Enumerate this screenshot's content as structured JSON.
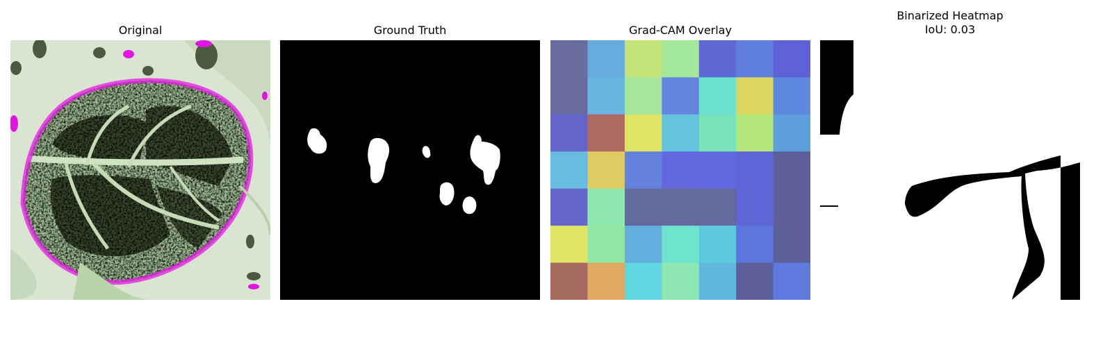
{
  "panels": [
    {
      "title": "Original"
    },
    {
      "title": "Ground Truth"
    },
    {
      "title": "Grad-CAM Overlay"
    },
    {
      "title": "Binarized Heatmap",
      "subtitle": "IoU: 0.03"
    }
  ],
  "image_description": {
    "original": "pale green leaf with dark lesion patches, magenta and blue artifact speckles",
    "ground_truth": "black mask with seven small white blobs",
    "gradcam": "7x7 grid of translucent heatmap colors over the leaf",
    "binarized": "white background with black shapes: top-left strip, diagonal band and lower-right arch"
  },
  "colors": {
    "mask_background": "#000000",
    "mask_foreground": "#ffffff"
  },
  "gradcam_grid": [
    [
      "#686c9e",
      "#67acde",
      "#c4e47a",
      "#a3e89a",
      "#5f69d6",
      "#5f7fdc",
      "#5f62d6"
    ],
    [
      "#686c9e",
      "#69b4e0",
      "#a6e59c",
      "#6484de",
      "#69e2cf",
      "#ddd65e",
      "#5f89de"
    ],
    [
      "#6466cc",
      "#ac6b5e",
      "#dfe464",
      "#62c4de",
      "#7ae2b8",
      "#b4e67e",
      "#5c9ede"
    ],
    [
      "#68bce0",
      "#e0ca62",
      "#6482dc",
      "#6468de",
      "#6368e0",
      "#5f66d6",
      "#5c5f9a"
    ],
    [
      "#6466cc",
      "#8ee8b0",
      "#646a9e",
      "#646a9e",
      "#646a9e",
      "#5f66d6",
      "#5c5f9a"
    ],
    [
      "#dfe462",
      "#94e6a6",
      "#64aede",
      "#6ee4cf",
      "#5ec8e0",
      "#5c76dc",
      "#5c5f9a"
    ],
    [
      "#a46b5e",
      "#e0a862",
      "#5fd6e0",
      "#8ee6b2",
      "#5eb8de",
      "#5c5f9a",
      "#5f7ade"
    ]
  ]
}
